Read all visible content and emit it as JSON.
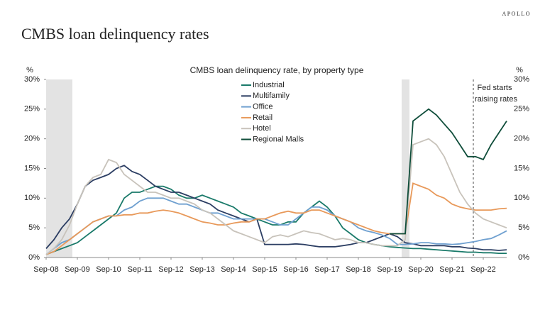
{
  "brand": "APOLLO",
  "heading": "CMBS loan delinquency rates",
  "chart_data": {
    "type": "line",
    "title": "CMBS loan delinquency rate, by property type",
    "y_unit": "%",
    "y2_unit": "%",
    "annotation": [
      "Fed starts",
      "raising rates"
    ],
    "legend": "top center",
    "grid": false,
    "categories": [
      "Sep-08",
      null,
      null,
      null,
      "Sep-09",
      null,
      null,
      null,
      "Sep-10",
      null,
      null,
      null,
      "Sep-11",
      null,
      null,
      null,
      "Sep-12",
      null,
      null,
      null,
      "Sep-13",
      null,
      null,
      null,
      "Sep-14",
      null,
      null,
      null,
      "Sep-15",
      null,
      null,
      null,
      "Sep-16",
      null,
      null,
      null,
      "Sep-17",
      null,
      null,
      null,
      "Sep-18",
      null,
      null,
      null,
      "Sep-19",
      null,
      null,
      null,
      "Sep-20",
      null,
      null,
      null,
      "Sep-21",
      null,
      null,
      null,
      "Sep-22",
      null,
      null,
      null
    ],
    "ylim": [
      0,
      30
    ],
    "yticks": [
      {
        "value": 0,
        "label": "0%"
      },
      {
        "value": 5,
        "label": "5%"
      },
      {
        "value": 10,
        "label": "10%"
      },
      {
        "value": 15,
        "label": "15%"
      },
      {
        "value": 20,
        "label": "20%"
      },
      {
        "value": 25,
        "label": "25%"
      },
      {
        "value": 30,
        "label": "30%"
      }
    ],
    "y2lim": [
      0,
      30
    ],
    "y2ticks": [
      {
        "value": 0,
        "label": "0%"
      },
      {
        "value": 5,
        "label": "5%"
      },
      {
        "value": 10,
        "label": "10%"
      },
      {
        "value": 15,
        "label": "15%"
      },
      {
        "value": 20,
        "label": "20%"
      },
      {
        "value": 25,
        "label": "25%"
      },
      {
        "value": 30,
        "label": "30%"
      }
    ],
    "series": [
      {
        "name": "Industrial",
        "color": "#1a7a6a",
        "values": [
          0.5,
          1,
          1.5,
          2,
          2.5,
          3.5,
          4.5,
          5.5,
          6.5,
          7.5,
          10,
          11,
          11,
          11.5,
          12,
          12,
          11.5,
          10.5,
          10,
          10,
          10.5,
          10,
          9.5,
          9,
          8.5,
          7.5,
          7,
          6.5,
          6,
          5.5,
          5.5,
          6,
          6,
          7.5,
          8.5,
          9.5,
          8.5,
          7,
          5,
          4,
          3,
          2.5,
          2.2,
          2,
          1.8,
          1.7,
          1.6,
          1.5,
          1.5,
          1.4,
          1.3,
          1.2,
          1.1,
          1,
          0.9,
          0.9,
          0.8,
          0.8,
          0.7,
          0.7
        ]
      },
      {
        "name": "Multifamily",
        "color": "#2c3e63",
        "values": [
          1.5,
          3,
          5,
          6.5,
          9,
          12,
          13,
          13.5,
          14,
          15,
          15.5,
          14.5,
          14,
          13,
          12,
          11.5,
          11,
          11,
          10.5,
          10,
          9.5,
          9,
          8,
          7.5,
          7,
          6.5,
          6,
          6.5,
          2.2,
          2.2,
          2.2,
          2.2,
          2.3,
          2.2,
          2,
          1.8,
          1.8,
          1.8,
          2,
          2.2,
          2.5,
          2.5,
          3,
          3.5,
          4,
          3.5,
          2.5,
          2.3,
          2,
          2,
          2,
          2,
          1.8,
          1.8,
          1.6,
          1.5,
          1.3,
          1.3,
          1.2,
          1.3
        ]
      },
      {
        "name": "Office",
        "color": "#6fa0d0",
        "values": [
          0.5,
          1.5,
          2.5,
          3,
          4,
          5,
          6,
          6.5,
          7,
          7,
          8,
          8.5,
          9.5,
          10,
          10,
          10,
          9.5,
          9,
          9,
          8.5,
          8,
          7.5,
          7.5,
          7,
          6.5,
          6.5,
          6.5,
          6.5,
          6.5,
          6,
          5.5,
          5.5,
          6.5,
          7.5,
          8.5,
          8.5,
          8,
          7,
          6.5,
          6,
          5,
          4.5,
          4.2,
          3.8,
          3.2,
          2.2,
          2.2,
          2.3,
          2.5,
          2.5,
          2.3,
          2.3,
          2.2,
          2.3,
          2.5,
          2.7,
          3,
          3.2,
          3.8,
          4.5
        ]
      },
      {
        "name": "Retail",
        "color": "#e8995a",
        "values": [
          0.5,
          1,
          2,
          3,
          4,
          5,
          6,
          6.5,
          7,
          7,
          7.2,
          7.2,
          7.5,
          7.5,
          7.8,
          8,
          7.8,
          7.5,
          7,
          6.5,
          6,
          5.8,
          5.5,
          5.5,
          5.8,
          6,
          6,
          6.5,
          6.5,
          7,
          7.5,
          7.8,
          7.5,
          7.5,
          8,
          8,
          7.5,
          7,
          6.5,
          6,
          5.5,
          5,
          4.5,
          4.2,
          4,
          4,
          4,
          12.5,
          12,
          11.5,
          10.5,
          10,
          9,
          8.5,
          8.2,
          8,
          8,
          8,
          8.2,
          8.3
        ]
      },
      {
        "name": "Hotel",
        "color": "#c8c3bb",
        "values": [
          0.5,
          1.5,
          3,
          5.5,
          9,
          12,
          13.5,
          14,
          16.5,
          16,
          14,
          13,
          12,
          11,
          11,
          10.5,
          10,
          10,
          9.5,
          9,
          8,
          7.5,
          6.5,
          5.5,
          4.5,
          4,
          3.5,
          3,
          2.5,
          3.5,
          3.8,
          3.5,
          4,
          4.5,
          4.2,
          4,
          3.5,
          3,
          3.2,
          3,
          2.5,
          2.5,
          2.2,
          2,
          2,
          2,
          3,
          19,
          19.5,
          20,
          19,
          17,
          14,
          11,
          9,
          7.5,
          6.5,
          6,
          5.5,
          5
        ]
      },
      {
        "name": "Regional Malls",
        "color": "#0f4d3a",
        "values": [
          null,
          null,
          null,
          null,
          null,
          null,
          null,
          null,
          null,
          null,
          null,
          null,
          null,
          null,
          null,
          null,
          null,
          null,
          null,
          null,
          null,
          null,
          null,
          null,
          null,
          null,
          null,
          null,
          null,
          null,
          null,
          null,
          null,
          null,
          null,
          null,
          null,
          null,
          null,
          null,
          null,
          null,
          null,
          null,
          4,
          4,
          4,
          23,
          24,
          25,
          24,
          22.5,
          21,
          19,
          17,
          17,
          16.5,
          19,
          21,
          23
        ]
      }
    ]
  }
}
